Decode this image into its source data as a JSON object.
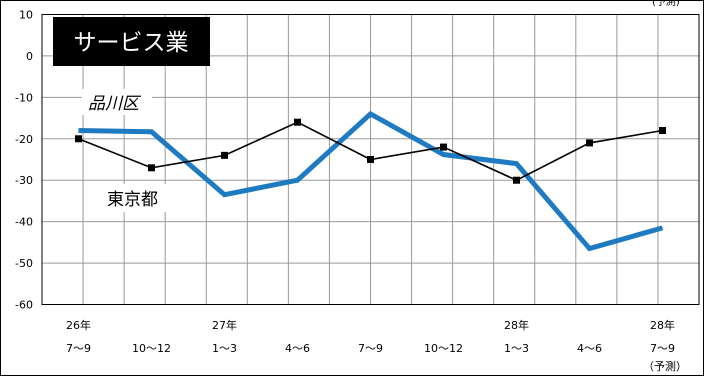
{
  "chart_data": {
    "type": "line",
    "title": "サービス業",
    "ylim": [
      -60,
      10
    ],
    "yticks": [
      10,
      0,
      -10,
      -20,
      -30,
      -40,
      -50,
      -60
    ],
    "grid": true,
    "categories": [
      {
        "top": "26年",
        "bottom": "7～9"
      },
      {
        "top": "",
        "bottom": "10～12"
      },
      {
        "top": "27年",
        "bottom": "1～3"
      },
      {
        "top": "",
        "bottom": "4～6"
      },
      {
        "top": "",
        "bottom": "7～9"
      },
      {
        "top": "",
        "bottom": "10～12"
      },
      {
        "top": "28年",
        "bottom": "1～3"
      },
      {
        "top": "",
        "bottom": "4～6"
      },
      {
        "top": "28年",
        "bottom": "7～9"
      }
    ],
    "forecast_note": "（予測）",
    "corner_note": "(予測)",
    "series": [
      {
        "name": "品川区",
        "color": "#1f7bc1",
        "values": [
          -18,
          -18.3,
          -33.5,
          -30,
          -14,
          -23.8,
          -26,
          -46.5,
          -41.5
        ]
      },
      {
        "name": "東京都",
        "color": "#000000",
        "values": [
          -20,
          -27,
          -24,
          -16,
          -25,
          -22,
          -30,
          -21,
          -18
        ]
      }
    ]
  }
}
